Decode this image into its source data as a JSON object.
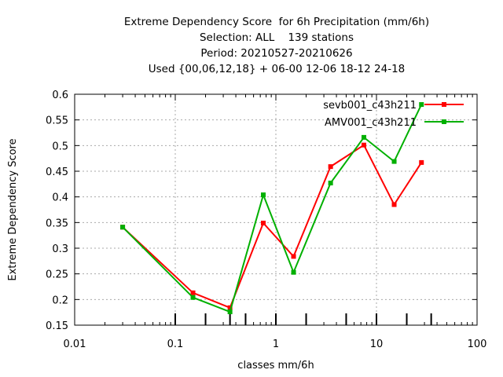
{
  "chart_data": {
    "type": "line",
    "title_lines": [
      "Extreme Dependency Score  for 6h Precipitation (mm/6h)",
      "Selection: ALL    139 stations",
      "Period: 20210527-20210626",
      "Used {00,06,12,18} + 06-00 12-06 18-12 24-18"
    ],
    "xlabel": "classes mm/6h",
    "ylabel": "Extreme Dependency Score",
    "x_scale": "log",
    "xlim": [
      0.01,
      100
    ],
    "ylim": [
      0.15,
      0.6
    ],
    "x_ticks": [
      {
        "value": 0.01,
        "label": "0.01"
      },
      {
        "value": 0.1,
        "label": "0.1"
      },
      {
        "value": 1,
        "label": "1"
      },
      {
        "value": 10,
        "label": "10"
      },
      {
        "value": 100,
        "label": "100"
      }
    ],
    "y_ticks": [
      {
        "value": 0.15,
        "label": "0.15"
      },
      {
        "value": 0.2,
        "label": "0.2"
      },
      {
        "value": 0.25,
        "label": "0.25"
      },
      {
        "value": 0.3,
        "label": "0.3"
      },
      {
        "value": 0.35,
        "label": "0.35"
      },
      {
        "value": 0.4,
        "label": "0.4"
      },
      {
        "value": 0.45,
        "label": "0.45"
      },
      {
        "value": 0.5,
        "label": "0.5"
      },
      {
        "value": 0.55,
        "label": "0.55"
      },
      {
        "value": 0.6,
        "label": "0.6"
      }
    ],
    "class_markers": [
      0.1,
      0.2,
      0.35,
      0.5,
      1,
      2,
      5,
      10,
      20,
      35
    ],
    "grid": true,
    "legend_position": "top-right",
    "series": [
      {
        "name": "sevb001_c43h211",
        "color": "#ff0000",
        "x": [
          0.03,
          0.15,
          0.35,
          0.75,
          1.5,
          3.5,
          7.5,
          15,
          28
        ],
        "y": [
          0.341,
          0.213,
          0.184,
          0.349,
          0.284,
          0.459,
          0.501,
          0.385,
          0.467
        ]
      },
      {
        "name": "AMV001_c43h211",
        "color": "#00b000",
        "x": [
          0.03,
          0.15,
          0.35,
          0.75,
          1.5,
          3.5,
          7.5,
          15,
          28
        ],
        "y": [
          0.341,
          0.204,
          0.176,
          0.404,
          0.253,
          0.427,
          0.516,
          0.469,
          0.58
        ]
      }
    ]
  }
}
